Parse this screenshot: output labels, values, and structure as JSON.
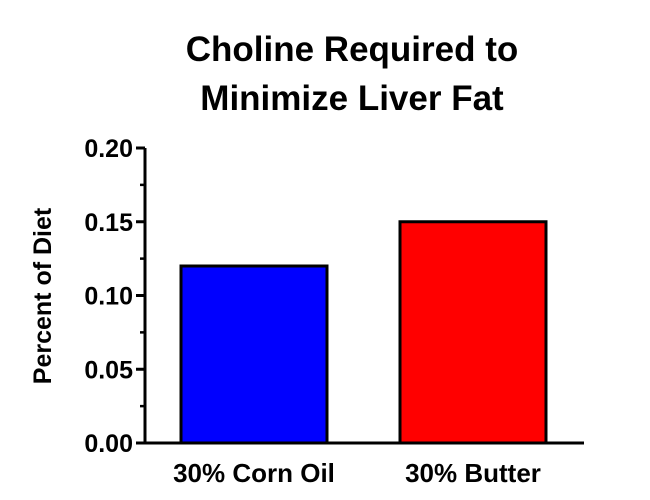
{
  "chart_data": {
    "type": "bar",
    "title_lines": [
      "Choline Required to",
      "Minimize Liver Fat"
    ],
    "xlabel": "",
    "ylabel": "Percent of Diet",
    "categories": [
      "30% Corn Oil",
      "30% Butter"
    ],
    "values": [
      0.12,
      0.15
    ],
    "bar_colors": [
      "#0000ff",
      "#ff0000"
    ],
    "ylim": [
      0,
      0.2
    ],
    "yticks": [
      0.0,
      0.05,
      0.1,
      0.15,
      0.2
    ],
    "ytick_labels": [
      "0.00",
      "0.05",
      "0.10",
      "0.15",
      "0.20"
    ],
    "grid": false,
    "legend": "none"
  }
}
